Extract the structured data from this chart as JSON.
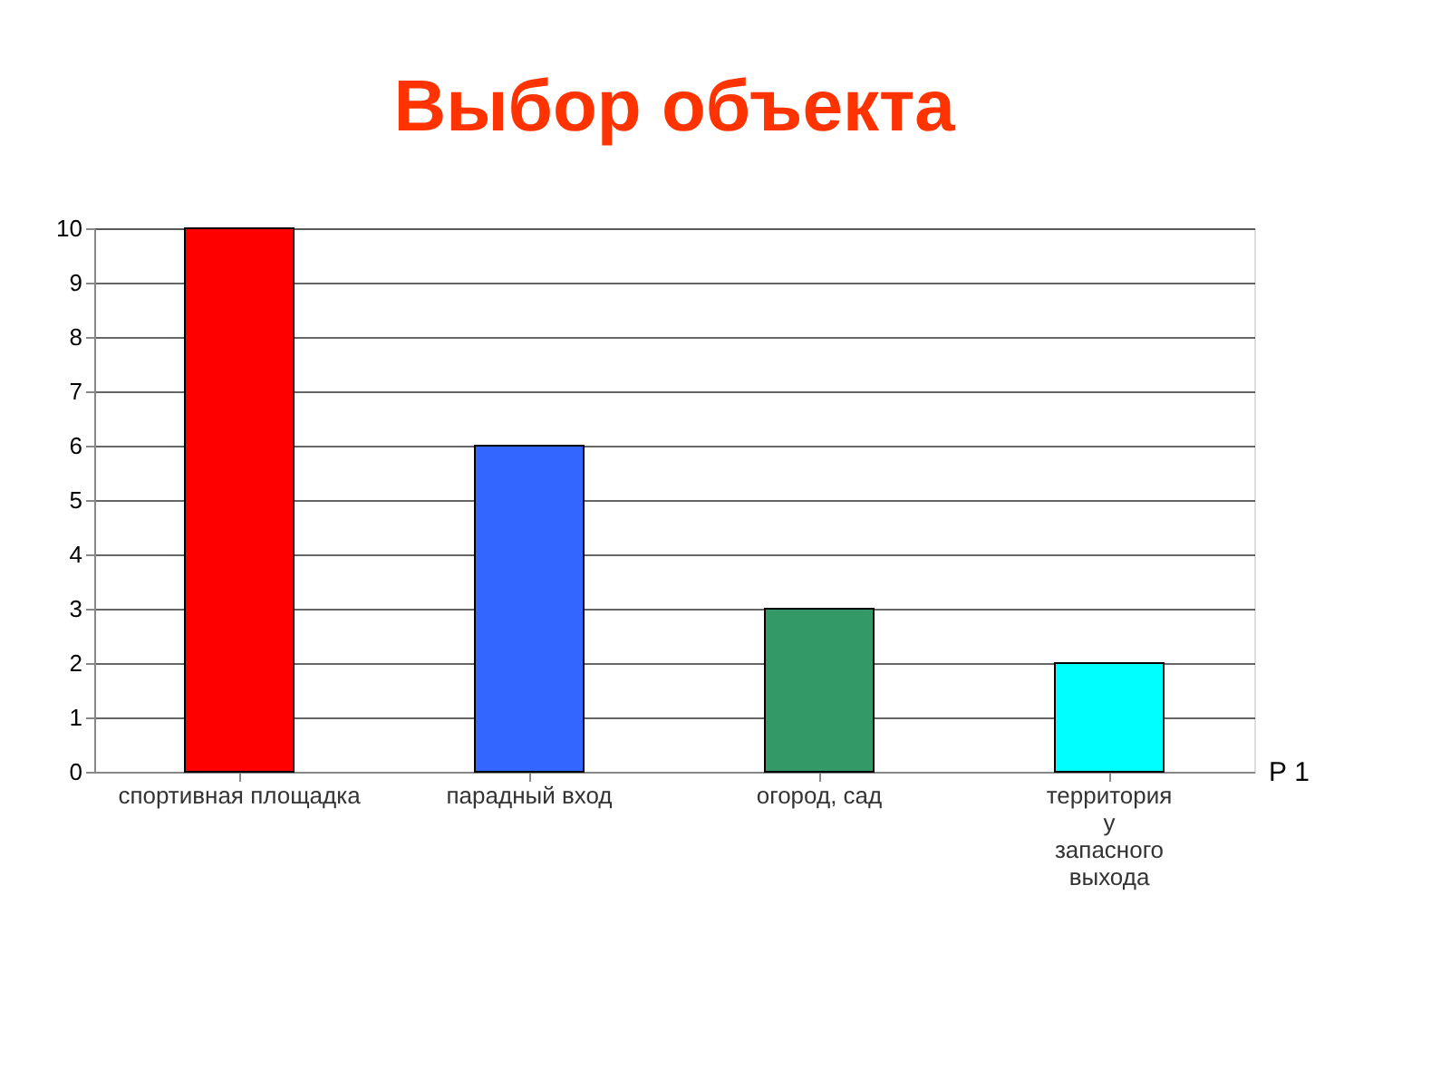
{
  "chart_data": {
    "type": "bar",
    "title": "Выбор объекта",
    "categories": [
      "спортивная площадка",
      "парадный вход",
      "огород, сад",
      "территория у запасного выхода"
    ],
    "values": [
      10,
      6,
      3,
      2
    ],
    "colors": [
      "#ff0000",
      "#3366ff",
      "#339966",
      "#00ffff"
    ],
    "ylim": [
      0,
      10
    ],
    "yticks": [
      0,
      1,
      2,
      3,
      4,
      5,
      6,
      7,
      8,
      9,
      10
    ],
    "grid": "y",
    "annotations": [
      "Р 1"
    ]
  }
}
